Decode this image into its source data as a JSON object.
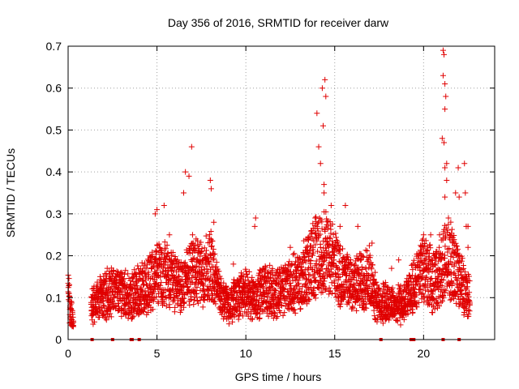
{
  "chart_data": {
    "type": "scatter",
    "title": "Day 356 of 2016, SRMTID for receiver darw",
    "xlabel": "GPS time / hours",
    "ylabel": "SRMTID / TECUs",
    "xlim": [
      0,
      24
    ],
    "ylim": [
      0,
      0.7
    ],
    "x_ticks": [
      "0",
      "5",
      "10",
      "15",
      "20"
    ],
    "y_ticks": [
      "0",
      "0.1",
      "0.2",
      "0.3",
      "0.4",
      "0.5",
      "0.6",
      "0.7"
    ],
    "grid": true,
    "marker": "+",
    "colors": {
      "series": "#e00000",
      "grid": "#a0a0a0",
      "axis": "#000000"
    },
    "zero_marks_x": [
      1.35,
      2.5,
      3.55,
      3.6,
      4.0,
      17.6,
      19.3,
      19.45,
      21.1,
      22.0
    ],
    "trend": [
      [
        0.0,
        0.1
      ],
      [
        0.25,
        0.05
      ],
      [
        1.3,
        0.08
      ],
      [
        2.0,
        0.1
      ],
      [
        2.5,
        0.12
      ],
      [
        3.0,
        0.11
      ],
      [
        3.5,
        0.1
      ],
      [
        4.0,
        0.12
      ],
      [
        4.5,
        0.13
      ],
      [
        5.0,
        0.15
      ],
      [
        5.5,
        0.16
      ],
      [
        6.0,
        0.14
      ],
      [
        6.5,
        0.13
      ],
      [
        7.0,
        0.17
      ],
      [
        7.5,
        0.15
      ],
      [
        8.0,
        0.18
      ],
      [
        8.5,
        0.11
      ],
      [
        9.0,
        0.08
      ],
      [
        9.5,
        0.1
      ],
      [
        10.0,
        0.11
      ],
      [
        10.5,
        0.1
      ],
      [
        11.0,
        0.12
      ],
      [
        11.5,
        0.11
      ],
      [
        12.0,
        0.12
      ],
      [
        12.5,
        0.13
      ],
      [
        13.0,
        0.14
      ],
      [
        13.5,
        0.17
      ],
      [
        14.0,
        0.2
      ],
      [
        14.5,
        0.21
      ],
      [
        15.0,
        0.18
      ],
      [
        15.5,
        0.14
      ],
      [
        16.0,
        0.13
      ],
      [
        16.5,
        0.14
      ],
      [
        17.0,
        0.15
      ],
      [
        17.5,
        0.08
      ],
      [
        18.0,
        0.09
      ],
      [
        18.5,
        0.08
      ],
      [
        19.0,
        0.09
      ],
      [
        19.5,
        0.13
      ],
      [
        20.0,
        0.17
      ],
      [
        20.5,
        0.14
      ],
      [
        21.0,
        0.16
      ],
      [
        21.3,
        0.2
      ],
      [
        21.8,
        0.17
      ],
      [
        22.3,
        0.12
      ],
      [
        22.6,
        0.1
      ]
    ],
    "gaps": [
      [
        0.3,
        1.3
      ],
      [
        22.7,
        24
      ]
    ],
    "peaks": [
      [
        0.05,
        0.11
      ],
      [
        1.8,
        0.15
      ],
      [
        2.2,
        0.17
      ],
      [
        3.0,
        0.16
      ],
      [
        4.6,
        0.2
      ],
      [
        4.9,
        0.3
      ],
      [
        5.0,
        0.31
      ],
      [
        5.4,
        0.32
      ],
      [
        5.7,
        0.25
      ],
      [
        6.5,
        0.35
      ],
      [
        6.6,
        0.4
      ],
      [
        6.8,
        0.39
      ],
      [
        6.95,
        0.46
      ],
      [
        7.0,
        0.25
      ],
      [
        7.2,
        0.24
      ],
      [
        8.0,
        0.38
      ],
      [
        8.05,
        0.36
      ],
      [
        8.2,
        0.28
      ],
      [
        9.3,
        0.18
      ],
      [
        10.5,
        0.27
      ],
      [
        10.55,
        0.29
      ],
      [
        11.0,
        0.17
      ],
      [
        12.1,
        0.16
      ],
      [
        12.5,
        0.22
      ],
      [
        13.4,
        0.22
      ],
      [
        13.7,
        0.26
      ],
      [
        13.9,
        0.29
      ],
      [
        14.0,
        0.54
      ],
      [
        14.1,
        0.46
      ],
      [
        14.2,
        0.42
      ],
      [
        14.3,
        0.6
      ],
      [
        14.35,
        0.51
      ],
      [
        14.45,
        0.62
      ],
      [
        14.5,
        0.58
      ],
      [
        14.4,
        0.37
      ],
      [
        14.4,
        0.35
      ],
      [
        14.8,
        0.32
      ],
      [
        15.3,
        0.27
      ],
      [
        15.6,
        0.32
      ],
      [
        16.3,
        0.27
      ],
      [
        17.1,
        0.23
      ],
      [
        18.2,
        0.17
      ],
      [
        18.6,
        0.19
      ],
      [
        19.4,
        0.18
      ],
      [
        19.9,
        0.2
      ],
      [
        20.0,
        0.25
      ],
      [
        20.4,
        0.25
      ],
      [
        20.9,
        0.25
      ],
      [
        21.05,
        0.48
      ],
      [
        21.1,
        0.69
      ],
      [
        21.15,
        0.68
      ],
      [
        21.1,
        0.63
      ],
      [
        21.2,
        0.61
      ],
      [
        21.25,
        0.58
      ],
      [
        21.2,
        0.55
      ],
      [
        21.3,
        0.42
      ],
      [
        21.15,
        0.47
      ],
      [
        21.2,
        0.41
      ],
      [
        21.3,
        0.38
      ],
      [
        21.2,
        0.34
      ],
      [
        21.4,
        0.29
      ],
      [
        21.8,
        0.35
      ],
      [
        21.95,
        0.41
      ],
      [
        22.0,
        0.34
      ],
      [
        22.3,
        0.42
      ],
      [
        22.35,
        0.35
      ],
      [
        22.4,
        0.27
      ],
      [
        22.5,
        0.27
      ],
      [
        22.5,
        0.22
      ]
    ]
  }
}
